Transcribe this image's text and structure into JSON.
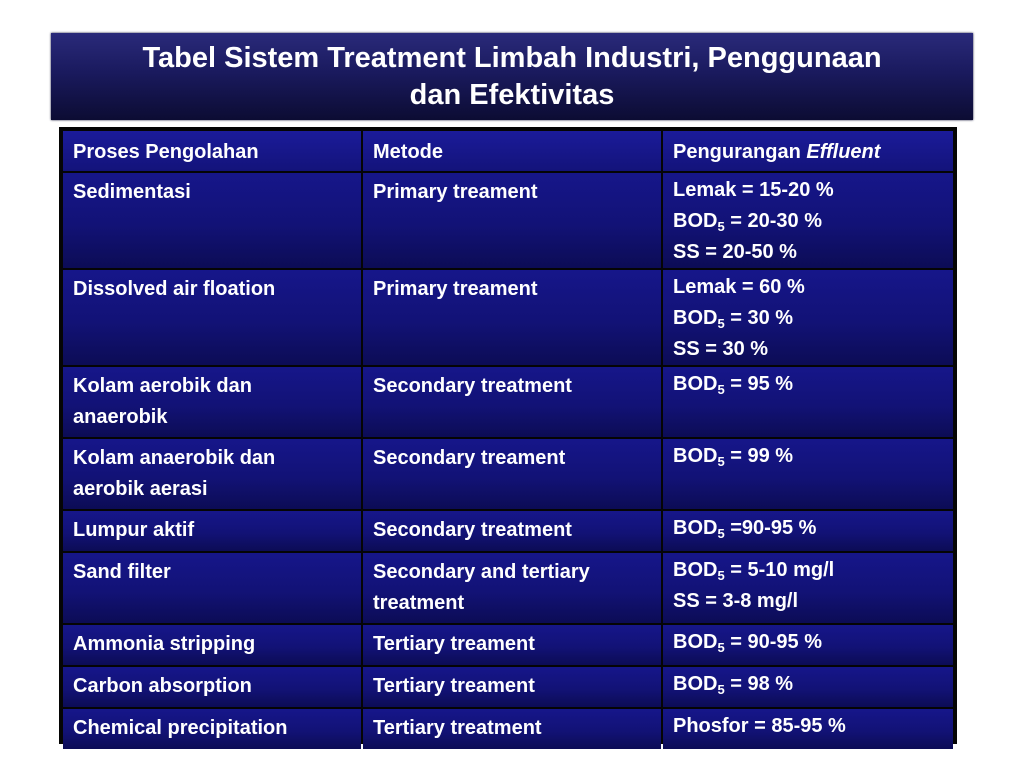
{
  "title": {
    "line1": "Tabel Sistem Treatment Limbah Industri, Penggunaan",
    "line2": "dan Efektivitas"
  },
  "table": {
    "headers": {
      "col1": "Proses Pengolahan",
      "col2": "Metode",
      "col3_prefix": "Pengurangan ",
      "col3_italic": "Effluent"
    },
    "rows": [
      {
        "proses": "Sedimentasi",
        "metode": "Primary treament",
        "lines": [
          {
            "pre": "Lemak = 15-20 %"
          },
          {
            "pre": "BOD",
            "sub": "5",
            "post": " = 20-30 %"
          },
          {
            "pre": "SS = 20-50 %"
          }
        ]
      },
      {
        "proses": "Dissolved air floation",
        "metode": "Primary treament",
        "lines": [
          {
            "pre": "Lemak = 60 %"
          },
          {
            "pre": "BOD",
            "sub": "5",
            "post": " = 30 %"
          },
          {
            "pre": "SS = 30 %"
          }
        ]
      },
      {
        "proses": "Kolam aerobik dan anaerobik",
        "metode": "Secondary treatment",
        "lines": [
          {
            "pre": "BOD",
            "sub": "5",
            "post": " = 95 %"
          }
        ]
      },
      {
        "proses": "Kolam anaerobik dan aerobik aerasi",
        "metode": "Secondary treament",
        "lines": [
          {
            "pre": "BOD",
            "sub": "5",
            "post": " = 99 %"
          }
        ]
      },
      {
        "proses": "Lumpur aktif",
        "metode": "Secondary treatment",
        "lines": [
          {
            "pre": "BOD",
            "sub": "5",
            "post": " =90-95 %"
          }
        ]
      },
      {
        "proses": "Sand filter",
        "metode": "Secondary and tertiary treatment",
        "lines": [
          {
            "pre": "BOD",
            "sub": "5",
            "post": " = 5-10 mg/l"
          },
          {
            "pre": "SS = 3-8 mg/l"
          }
        ]
      },
      {
        "proses": "Ammonia stripping",
        "metode": "Tertiary treament",
        "lines": [
          {
            "pre": "BOD",
            "sub": "5",
            "post": " = 90-95 %"
          }
        ]
      },
      {
        "proses": "Carbon absorption",
        "metode": "Tertiary treament",
        "lines": [
          {
            "pre": "BOD",
            "sub": "5",
            "post": " = 98 %"
          }
        ]
      },
      {
        "proses": "Chemical precipitation",
        "metode": "Tertiary treatment",
        "lines": [
          {
            "pre": "Phosfor = 85-95 %"
          }
        ]
      }
    ]
  }
}
